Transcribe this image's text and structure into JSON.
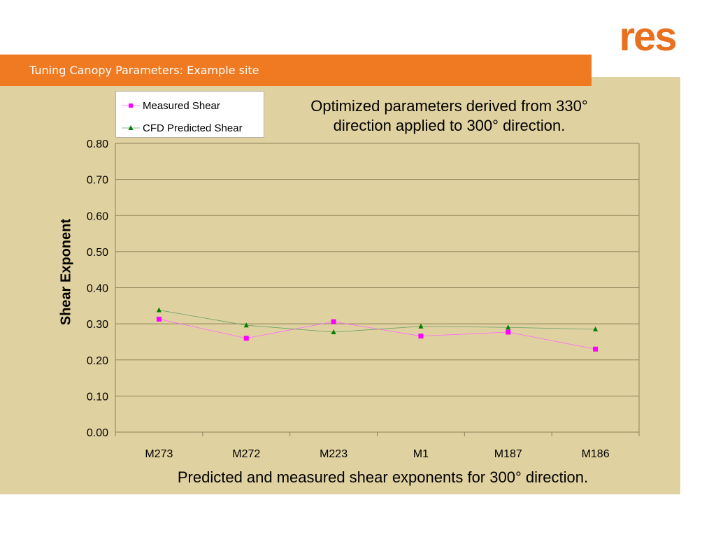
{
  "header": {
    "title": "Tuning Canopy Parameters: Example site"
  },
  "logo": {
    "text": "res",
    "color": "#e8701e"
  },
  "colors": {
    "title_bar": "#f07a22",
    "panel": "#e0d1a0",
    "measured": "#ff00ff",
    "cfd": "#008000"
  },
  "chart_data": {
    "type": "line",
    "title": "Optimized parameters derived from 330° direction applied to 300° direction.",
    "title_lines": [
      "Optimized parameters derived from 330°",
      "direction applied to 300° direction."
    ],
    "xlabel": "Predicted and measured shear exponents for 300° direction.",
    "ylabel": "Shear Exponent",
    "categories": [
      "M273",
      "M272",
      "M223",
      "M1",
      "M187",
      "M186"
    ],
    "ylim": [
      0,
      0.8
    ],
    "yticks": [
      "0.00",
      "0.10",
      "0.20",
      "0.30",
      "0.40",
      "0.50",
      "0.60",
      "0.70",
      "0.80"
    ],
    "grid": true,
    "legend_position": "top-left",
    "series": [
      {
        "name": "Measured Shear",
        "marker": "square",
        "color": "#ff00ff",
        "values": [
          0.313,
          0.26,
          0.306,
          0.266,
          0.277,
          0.23
        ]
      },
      {
        "name": "CFD Predicted Shear",
        "marker": "triangle",
        "color": "#008000",
        "values": [
          0.338,
          0.296,
          0.277,
          0.293,
          0.29,
          0.285
        ]
      }
    ]
  }
}
